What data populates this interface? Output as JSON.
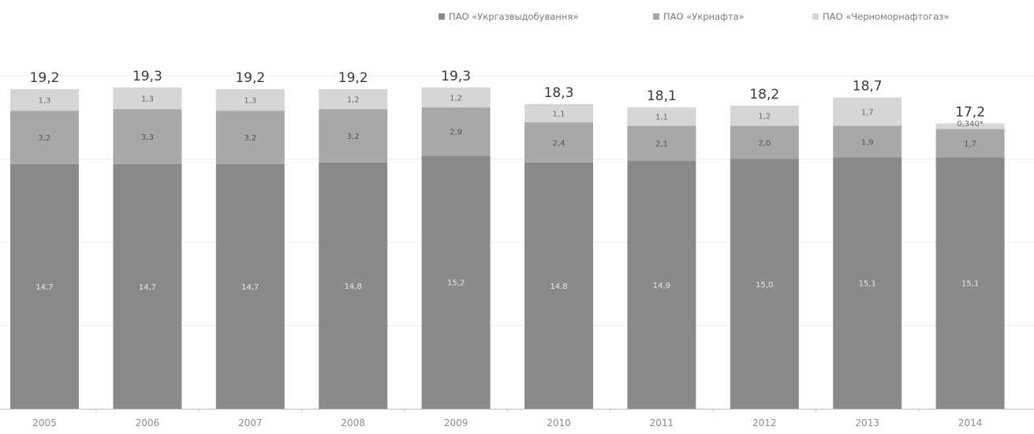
{
  "chart_data": {
    "type": "bar",
    "stacked": true,
    "categories": [
      "2005",
      "2006",
      "2007",
      "2008",
      "2009",
      "2010",
      "2011",
      "2012",
      "2013",
      "2014"
    ],
    "series": [
      {
        "name": "ПАО «Укргазвыдобування»",
        "color": "#8a8a8a",
        "values": [
          14.7,
          14.7,
          14.7,
          14.8,
          15.2,
          14.8,
          14.9,
          15.0,
          15.1,
          15.1
        ],
        "labels": [
          "14,7",
          "14,7",
          "14,7",
          "14,8",
          "15,2",
          "14,8",
          "14,9",
          "15,0",
          "15,1",
          "15,1"
        ]
      },
      {
        "name": "ПАО «Укрнафта»",
        "color": "#a8a8a8",
        "values": [
          3.2,
          3.3,
          3.2,
          3.2,
          2.9,
          2.4,
          2.1,
          2.0,
          1.9,
          1.7
        ],
        "labels": [
          "3,2",
          "3,3",
          "3,2",
          "3,2",
          "2,9",
          "2,4",
          "2,1",
          "2,0",
          "1,9",
          "1,7"
        ]
      },
      {
        "name": "ПАО «Черноморнафтогаз»",
        "color": "#d6d6d6",
        "values": [
          1.3,
          1.3,
          1.3,
          1.2,
          1.2,
          1.1,
          1.1,
          1.2,
          1.7,
          0.34
        ],
        "labels": [
          "1,3",
          "1,3",
          "1,3",
          "1,2",
          "1,2",
          "1,1",
          "1,1",
          "1,2",
          "1,7",
          "0,340*"
        ]
      }
    ],
    "totals": [
      "19,2",
      "19,3",
      "19,2",
      "19,2",
      "19,3",
      "18,3",
      "18,1",
      "18,2",
      "18,7",
      "17,2"
    ],
    "total_values": [
      19.2,
      19.3,
      19.2,
      19.2,
      19.3,
      18.3,
      18.1,
      18.2,
      18.7,
      17.2
    ],
    "ylim": [
      0,
      25
    ],
    "grid": true,
    "legend_position": "top-right",
    "xlabel": "",
    "ylabel": "",
    "title": ""
  }
}
